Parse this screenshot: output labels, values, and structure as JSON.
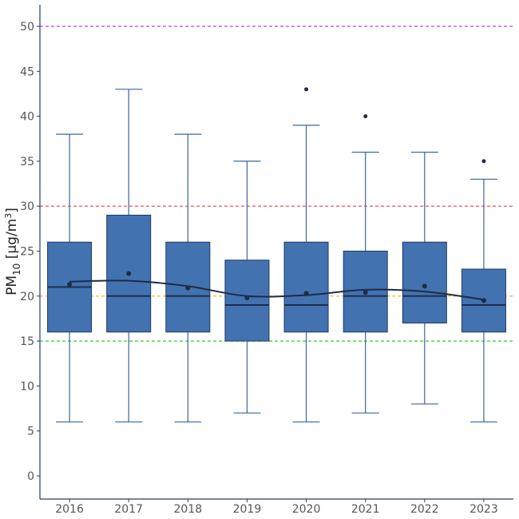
{
  "chart_data": {
    "type": "boxplot",
    "title": "",
    "xlabel": "",
    "ylabel": {
      "base": "PM",
      "sub": "10",
      "unit": " [µg/m",
      "sup": "3",
      "close": "]"
    },
    "ylim": [
      -2.5,
      52.5
    ],
    "yticks": [
      0,
      5,
      10,
      15,
      20,
      25,
      30,
      35,
      40,
      45,
      50
    ],
    "ytick_labels": [
      "0",
      "5",
      "10",
      "15",
      "20",
      "25",
      "30",
      "35",
      "40",
      "45",
      "50"
    ],
    "grid": false,
    "categories": [
      "2016",
      "2017",
      "2018",
      "2019",
      "2020",
      "2021",
      "2022",
      "2023"
    ],
    "boxes": [
      {
        "min": 6,
        "q1": 16,
        "median": 21,
        "q3": 26,
        "max": 38,
        "mean": 21.3,
        "outliers": []
      },
      {
        "min": 6,
        "q1": 16,
        "median": 20,
        "q3": 29,
        "max": 43,
        "mean": 22.5,
        "outliers": []
      },
      {
        "min": 6,
        "q1": 16,
        "median": 20,
        "q3": 26,
        "max": 38,
        "mean": 20.9,
        "outliers": []
      },
      {
        "min": 7,
        "q1": 15,
        "median": 19,
        "q3": 24,
        "max": 35,
        "mean": 19.8,
        "outliers": []
      },
      {
        "min": 6,
        "q1": 16,
        "median": 19,
        "q3": 26,
        "max": 39,
        "mean": 20.3,
        "outliers": [
          43
        ]
      },
      {
        "min": 7,
        "q1": 16,
        "median": 20,
        "q3": 25,
        "max": 36,
        "mean": 20.4,
        "outliers": [
          40
        ]
      },
      {
        "min": 8,
        "q1": 17,
        "median": 20,
        "q3": 26,
        "max": 36,
        "mean": 21.1,
        "outliers": []
      },
      {
        "min": 6,
        "q1": 16,
        "median": 19,
        "q3": 23,
        "max": 33,
        "mean": 19.5,
        "outliers": [
          35
        ]
      }
    ],
    "trend_line": [
      21.6,
      21.7,
      21.1,
      20.0,
      20.1,
      20.7,
      20.5,
      19.6
    ],
    "reference_lines": [
      {
        "value": 50,
        "color": "#c23fdc"
      },
      {
        "value": 30,
        "color": "#ff3b3b"
      },
      {
        "value": 20,
        "color": "#f0b400"
      },
      {
        "value": 15,
        "color": "#33cc33"
      }
    ],
    "colors": {
      "box_fill": "#4272b0",
      "box_stroke": "#1f3a64",
      "whisker": "#3d64a0",
      "median": "#1f2f4a",
      "mean_point": "#1e2b45",
      "trend": "#1e2b45",
      "axis": "#2b3a6b"
    }
  }
}
